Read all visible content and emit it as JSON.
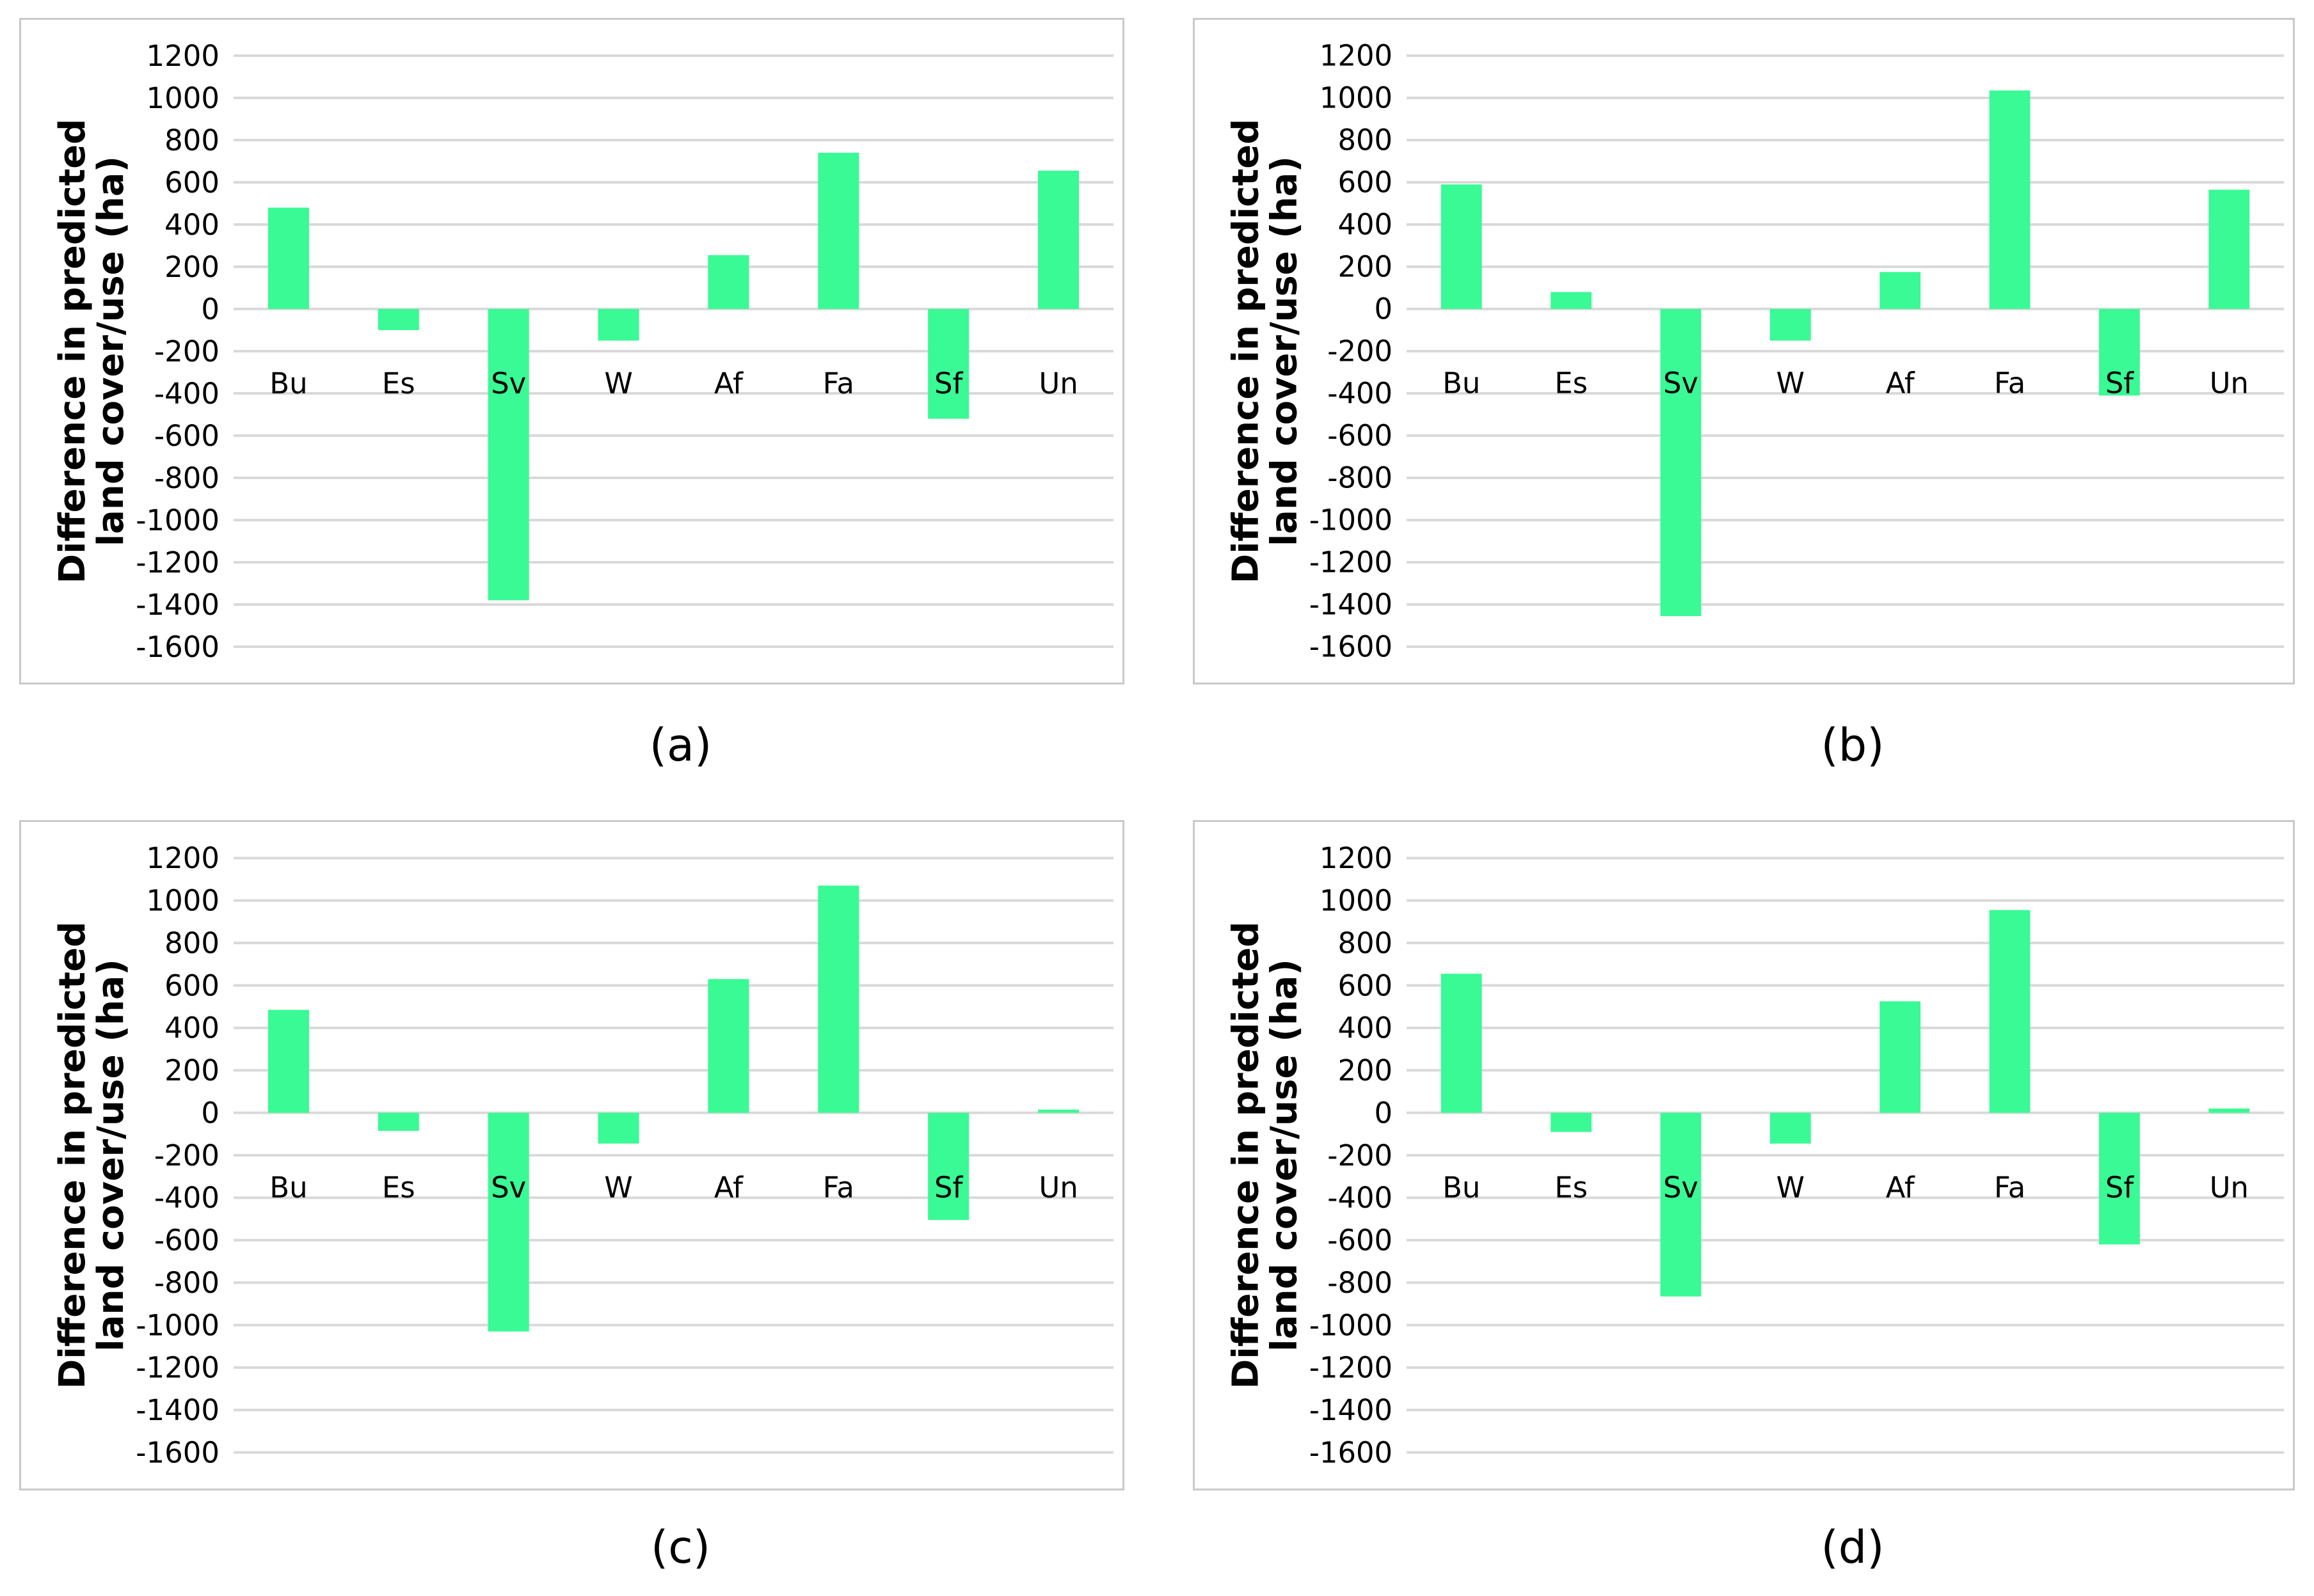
{
  "figure": {
    "description": "Four bar charts comparing difference in predicted land cover/use (ha) for eight land classes"
  },
  "colors": {
    "bar": "#39FA94",
    "gridline": "#D9D9D9",
    "panel_border": "#C9C9C9",
    "text": "#000000",
    "background": "#FFFFFF"
  },
  "chart_data": [
    {
      "id": "a",
      "type": "bar",
      "caption": "(a)",
      "ylabel": "Difference in predicted land cover/use (ha)",
      "ylabel_lines": [
        "Difference in predicted",
        "land cover/use (ha)"
      ],
      "categories": [
        "Bu",
        "Es",
        "Sv",
        "W",
        "Af",
        "Fa",
        "Sf",
        "Un"
      ],
      "values": [
        480,
        -100,
        -1380,
        -150,
        255,
        740,
        -520,
        655
      ],
      "ylim": [
        -1600,
        1200
      ],
      "ytick_step": 200,
      "yticks": [
        1200,
        1000,
        800,
        600,
        400,
        200,
        0,
        -200,
        -400,
        -600,
        -800,
        -1000,
        -1200,
        -1400,
        -1600
      ],
      "grid": true,
      "legend": "none"
    },
    {
      "id": "b",
      "type": "bar",
      "caption": "(b)",
      "ylabel": "Difference in predicted land cover/use (ha)",
      "ylabel_lines": [
        "Difference in predicted",
        "land cover/use (ha)"
      ],
      "categories": [
        "Bu",
        "Es",
        "Sv",
        "W",
        "Af",
        "Fa",
        "Sf",
        "Un"
      ],
      "values": [
        590,
        80,
        -1455,
        -150,
        175,
        1035,
        -410,
        565
      ],
      "ylim": [
        -1600,
        1200
      ],
      "ytick_step": 200,
      "yticks": [
        1200,
        1000,
        800,
        600,
        400,
        200,
        0,
        -200,
        -400,
        -600,
        -800,
        -1000,
        -1200,
        -1400,
        -1600
      ],
      "grid": true,
      "legend": "none"
    },
    {
      "id": "c",
      "type": "bar",
      "caption": "(c)",
      "ylabel": "Difference in predicted land cover/use (ha)",
      "ylabel_lines": [
        "Difference in predicted",
        "land cover/use (ha)"
      ],
      "categories": [
        "Bu",
        "Es",
        "Sv",
        "W",
        "Af",
        "Fa",
        "Sf",
        "Un"
      ],
      "values": [
        485,
        -85,
        -1030,
        -145,
        630,
        1070,
        -505,
        15
      ],
      "ylim": [
        -1600,
        1200
      ],
      "ytick_step": 200,
      "yticks": [
        1200,
        1000,
        800,
        600,
        400,
        200,
        0,
        -200,
        -400,
        -600,
        -800,
        -1000,
        -1200,
        -1400,
        -1600
      ],
      "grid": true,
      "legend": "none"
    },
    {
      "id": "d",
      "type": "bar",
      "caption": "(d)",
      "ylabel": "Difference in predicted land cover/use (ha)",
      "ylabel_lines": [
        "Difference in predicted",
        "land cover/use (ha)"
      ],
      "categories": [
        "Bu",
        "Es",
        "Sv",
        "W",
        "Af",
        "Fa",
        "Sf",
        "Un"
      ],
      "values": [
        655,
        -90,
        -865,
        -145,
        525,
        955,
        -620,
        20
      ],
      "ylim": [
        -1600,
        1200
      ],
      "ytick_step": 200,
      "yticks": [
        1200,
        1000,
        800,
        600,
        400,
        200,
        0,
        -200,
        -400,
        -600,
        -800,
        -1000,
        -1200,
        -1400,
        -1600
      ],
      "grid": true,
      "legend": "none"
    }
  ]
}
